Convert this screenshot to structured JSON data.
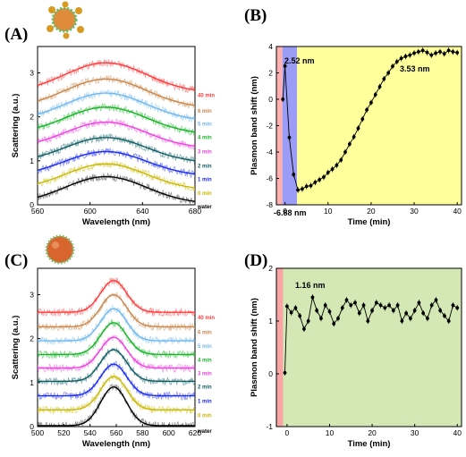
{
  "chart_data": [
    {
      "panel": "(A)",
      "type": "line",
      "xlabel": "Wavelength (nm)",
      "ylabel": "Scattering (a.u.)",
      "xlim": [
        560,
        680
      ],
      "ylim": [
        0,
        3.6
      ],
      "xticks": [
        560,
        600,
        640,
        680
      ],
      "yticks": [
        0,
        1,
        2,
        3
      ],
      "peak_x": 612,
      "width": 44,
      "series": [
        {
          "name": "40 min",
          "color": "#ff3b3b",
          "offset": 2.55,
          "amp": 0.68
        },
        {
          "name": "6 min",
          "color": "#c8864a",
          "offset": 2.2,
          "amp": 0.66
        },
        {
          "name": "5 min",
          "color": "#6fb8ee",
          "offset": 1.9,
          "amp": 0.64
        },
        {
          "name": "4 min",
          "color": "#18b528",
          "offset": 1.6,
          "amp": 0.62
        },
        {
          "name": "3 min",
          "color": "#f040e0",
          "offset": 1.28,
          "amp": 0.6
        },
        {
          "name": "2 min",
          "color": "#0f5e66",
          "offset": 0.95,
          "amp": 0.58
        },
        {
          "name": "1 min",
          "color": "#1a2cf0",
          "offset": 0.65,
          "amp": 0.56
        },
        {
          "name": "0 min",
          "color": "#c9b800",
          "offset": 0.33,
          "amp": 0.6
        },
        {
          "name": "water",
          "color": "#2a2a2a",
          "offset": 0.02,
          "amp": 0.62
        }
      ]
    },
    {
      "panel": "(B)",
      "type": "scatter",
      "xlabel": "Time (min)",
      "ylabel": "Plasmon band shift (nm)",
      "xlim": [
        -2,
        41
      ],
      "ylim": [
        -8,
        4
      ],
      "xticks": [
        0,
        10,
        20,
        30,
        40
      ],
      "yticks": [
        -8,
        -6,
        -4,
        -2,
        0,
        2,
        4
      ],
      "annotations": [
        "2.52 nm",
        "-6.88 nm",
        "3.53 nm"
      ],
      "highlight_colors": [
        "#ffb0b0",
        "#9a9cf5",
        "#ffff9c"
      ],
      "x": [
        -0.5,
        0,
        1,
        2,
        3,
        4,
        5,
        6,
        7,
        8,
        9,
        10,
        11,
        12,
        13,
        14,
        15,
        16,
        17,
        18,
        19,
        20,
        21,
        22,
        23,
        24,
        25,
        26,
        27,
        28,
        29,
        30,
        31,
        32,
        33,
        34,
        35,
        36,
        37,
        38,
        39,
        40
      ],
      "y": [
        0.0,
        2.52,
        -2.9,
        -5.7,
        -6.88,
        -6.8,
        -6.6,
        -6.55,
        -6.3,
        -6.1,
        -5.9,
        -5.55,
        -5.3,
        -5.0,
        -4.6,
        -4.0,
        -3.4,
        -2.85,
        -2.2,
        -1.5,
        -0.8,
        -0.25,
        0.35,
        0.95,
        1.55,
        2.0,
        2.5,
        2.85,
        3.1,
        3.25,
        3.35,
        3.5,
        3.6,
        3.7,
        3.55,
        3.35,
        3.5,
        3.6,
        3.45,
        3.7,
        3.6,
        3.53
      ]
    },
    {
      "panel": "(C)",
      "type": "line",
      "xlabel": "Wavelength (nm)",
      "ylabel": "Scattering (a.u.)",
      "xlim": [
        500,
        620
      ],
      "ylim": [
        0,
        3.6
      ],
      "xticks": [
        500,
        520,
        540,
        560,
        580,
        600,
        620
      ],
      "yticks": [
        0,
        1,
        2,
        3
      ],
      "peak_x": 558,
      "width": 14,
      "series": [
        {
          "name": "40 min",
          "color": "#ff3b3b",
          "offset": 2.6,
          "amp": 0.72
        },
        {
          "name": "6 min",
          "color": "#c8864a",
          "offset": 2.27,
          "amp": 0.73
        },
        {
          "name": "5 min",
          "color": "#6fb8ee",
          "offset": 1.95,
          "amp": 0.73
        },
        {
          "name": "4 min",
          "color": "#18b528",
          "offset": 1.64,
          "amp": 0.72
        },
        {
          "name": "3 min",
          "color": "#f040e0",
          "offset": 1.33,
          "amp": 0.7
        },
        {
          "name": "2 min",
          "color": "#0f5e66",
          "offset": 1.03,
          "amp": 0.72
        },
        {
          "name": "1 min",
          "color": "#1a2cf0",
          "offset": 0.7,
          "amp": 0.72
        },
        {
          "name": "0 min",
          "color": "#c9b800",
          "offset": 0.38,
          "amp": 0.76
        },
        {
          "name": "water",
          "color": "#2a2a2a",
          "offset": 0.02,
          "amp": 0.88
        }
      ]
    },
    {
      "panel": "(D)",
      "type": "scatter",
      "xlabel": "Time (min)",
      "ylabel": "Plasmon band shift (nm)",
      "xlim": [
        -2.5,
        41
      ],
      "ylim": [
        -1,
        2
      ],
      "xticks": [
        0,
        10,
        20,
        30,
        40
      ],
      "yticks": [
        -1,
        0,
        1,
        2
      ],
      "annotations": [
        "1.16 nm"
      ],
      "highlight_colors": [
        "#f9a5a5",
        "#d3e8b5"
      ],
      "x": [
        -0.5,
        0,
        1,
        2,
        3,
        4,
        5,
        6,
        7,
        8,
        9,
        10,
        11,
        12,
        13,
        14,
        15,
        16,
        17,
        18,
        19,
        20,
        21,
        22,
        23,
        24,
        25,
        26,
        27,
        28,
        29,
        30,
        31,
        32,
        33,
        34,
        35,
        36,
        37,
        38,
        39,
        40
      ],
      "y": [
        0.02,
        1.28,
        1.16,
        1.25,
        1.1,
        0.85,
        1.0,
        1.45,
        1.2,
        1.05,
        1.3,
        1.18,
        0.95,
        1.05,
        1.25,
        1.4,
        1.3,
        1.35,
        1.15,
        1.3,
        1.0,
        1.2,
        1.35,
        1.3,
        1.25,
        1.3,
        1.2,
        1.3,
        1.0,
        1.15,
        1.05,
        1.2,
        1.35,
        1.15,
        1.05,
        1.3,
        1.4,
        1.2,
        1.1,
        1.0,
        1.3,
        1.25
      ]
    }
  ]
}
